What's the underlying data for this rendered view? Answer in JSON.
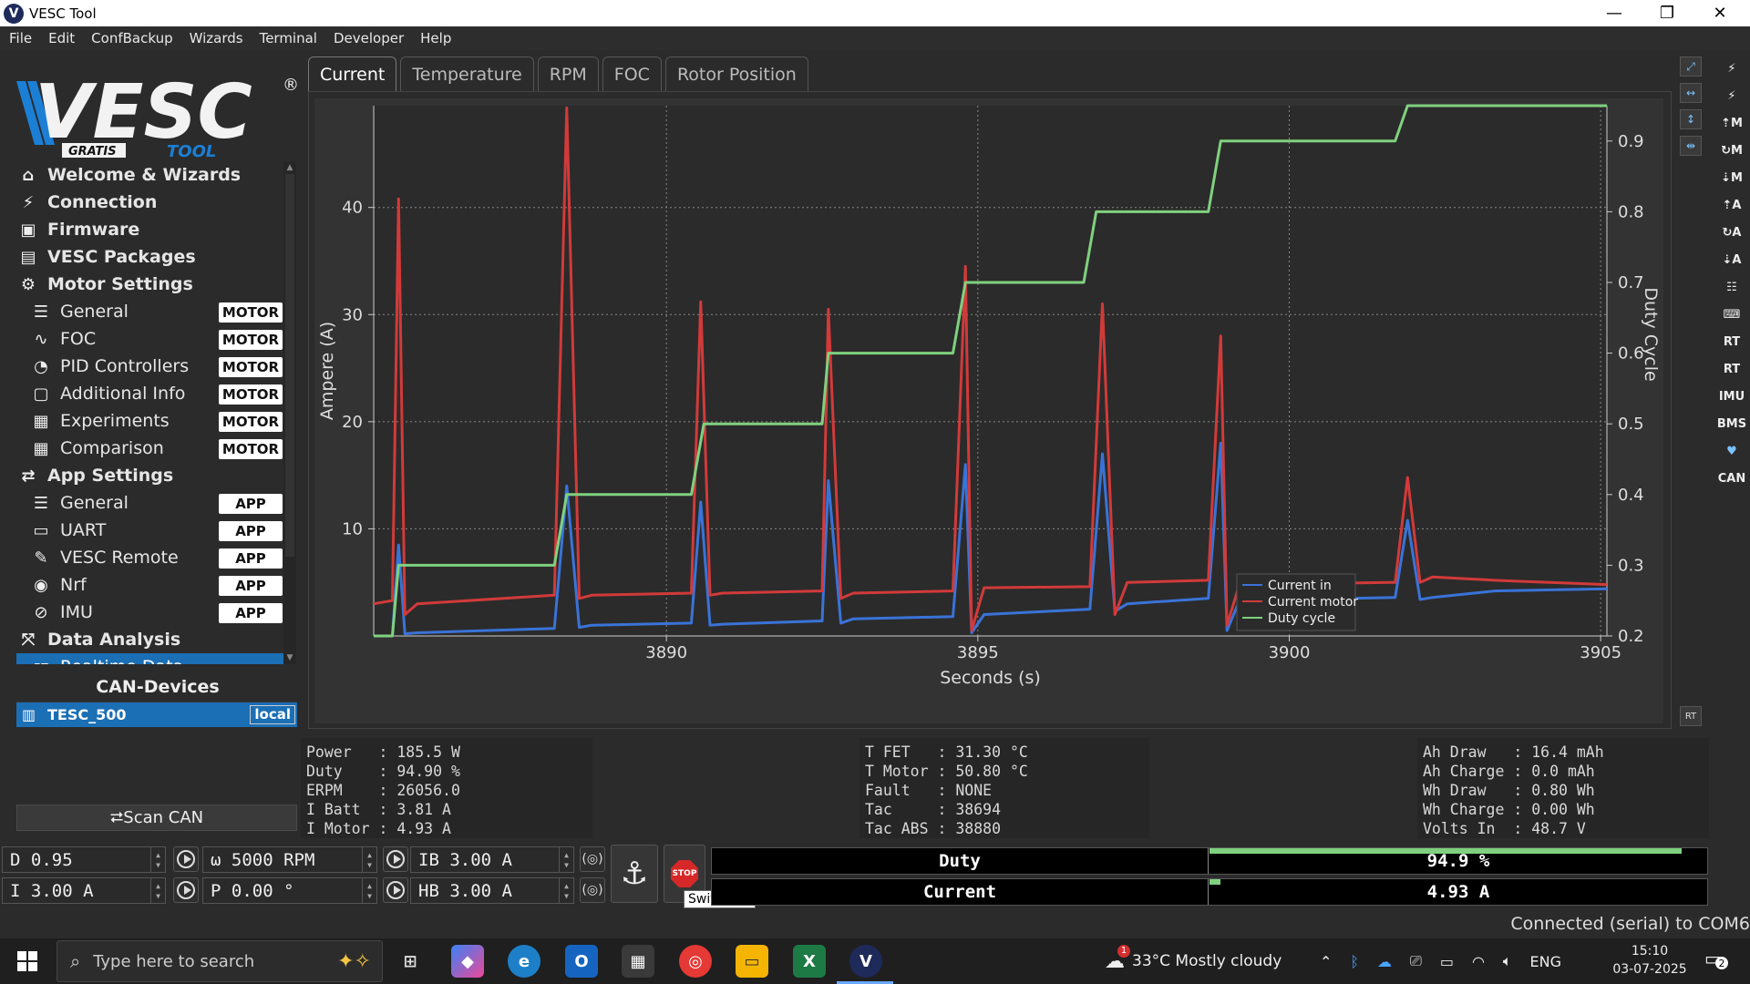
{
  "window": {
    "title": "VESC Tool",
    "minimize": "—",
    "maximize": "❐",
    "close": "✕",
    "logo": "V"
  },
  "menu": [
    "File",
    "Edit",
    "ConfBackup",
    "Wizards",
    "Terminal",
    "Developer",
    "Help"
  ],
  "logo": {
    "main": "VESC",
    "gratis": "GRATIS",
    "tool": "TOOL",
    "reg": "®"
  },
  "nav": [
    {
      "label": "Welcome & Wizards",
      "icon": "⌂",
      "level": "top"
    },
    {
      "label": "Connection",
      "icon": "⚡",
      "level": "top"
    },
    {
      "label": "Firmware",
      "icon": "▣",
      "level": "top"
    },
    {
      "label": "VESC Packages",
      "icon": "▤",
      "level": "top"
    },
    {
      "label": "Motor Settings",
      "icon": "⚙",
      "level": "top"
    },
    {
      "label": "General",
      "icon": "☰",
      "level": "sub",
      "tag": "MOTOR"
    },
    {
      "label": "FOC",
      "icon": "∿",
      "level": "sub",
      "tag": "MOTOR"
    },
    {
      "label": "PID Controllers",
      "icon": "◔",
      "level": "sub",
      "tag": "MOTOR"
    },
    {
      "label": "Additional Info",
      "icon": "▢",
      "level": "sub",
      "tag": "MOTOR"
    },
    {
      "label": "Experiments",
      "icon": "▦",
      "level": "sub",
      "tag": "MOTOR"
    },
    {
      "label": "Comparison",
      "icon": "▦",
      "level": "sub",
      "tag": "MOTOR"
    },
    {
      "label": "App Settings",
      "icon": "⇄",
      "level": "top"
    },
    {
      "label": "General",
      "icon": "☰",
      "level": "sub",
      "tag": "APP"
    },
    {
      "label": "UART",
      "icon": "▭",
      "level": "sub",
      "tag": "APP"
    },
    {
      "label": "VESC Remote",
      "icon": "✎",
      "level": "sub",
      "tag": "APP"
    },
    {
      "label": "Nrf",
      "icon": "◉",
      "level": "sub",
      "tag": "APP"
    },
    {
      "label": "IMU",
      "icon": "⊘",
      "level": "sub",
      "tag": "APP"
    },
    {
      "label": "Data Analysis",
      "icon": "⤧",
      "level": "top"
    },
    {
      "label": "Realtime Data",
      "icon": "RT",
      "level": "sub",
      "selected": true
    }
  ],
  "can": {
    "title": "CAN-Devices",
    "device": "TESC_500",
    "badge": "local",
    "scan_label": "⮂Scan CAN"
  },
  "tabs": [
    {
      "label": "Current",
      "active": true
    },
    {
      "label": "Temperature"
    },
    {
      "label": "RPM"
    },
    {
      "label": "FOC"
    },
    {
      "label": "Rotor Position"
    }
  ],
  "chart_data": {
    "type": "line",
    "xlabel": "Seconds (s)",
    "ylabel": "Ampere (A)",
    "y2label": "Duty Cycle",
    "xlim": [
      3885.3,
      3905.1
    ],
    "ylim": [
      0,
      49.5
    ],
    "y2lim": [
      0.2,
      0.95
    ],
    "xticks": [
      3890,
      3895,
      3900,
      3905
    ],
    "yticks": [
      10,
      20,
      30,
      40
    ],
    "y2ticks": [
      0.2,
      0.3,
      0.4,
      0.5,
      0.6,
      0.7,
      0.8,
      0.9
    ],
    "grid": true,
    "legend": "bottom-right",
    "series": [
      {
        "name": "Current in",
        "color": "#3a73d8",
        "axis": "left",
        "x": [
          3885.3,
          3885.6,
          3885.7,
          3885.8,
          3886.0,
          3888.2,
          3888.4,
          3888.6,
          3888.8,
          3890.4,
          3890.55,
          3890.7,
          3890.9,
          3892.5,
          3892.6,
          3892.8,
          3893.0,
          3894.6,
          3894.8,
          3894.9,
          3895.1,
          3896.8,
          3897.0,
          3897.2,
          3897.4,
          3898.7,
          3898.9,
          3899.0,
          3899.2,
          3901.7,
          3901.9,
          3902.1,
          3902.3,
          3903.3,
          3905.1
        ],
        "values": [
          0.0,
          0.0,
          8.5,
          0.2,
          0.3,
          0.7,
          14.0,
          0.8,
          1.0,
          1.2,
          12.5,
          1.0,
          1.1,
          1.4,
          14.5,
          1.2,
          1.6,
          1.8,
          16.0,
          0.3,
          2.0,
          2.5,
          17.0,
          2.3,
          3.0,
          3.5,
          18.0,
          0.5,
          3.3,
          3.6,
          10.8,
          3.4,
          3.6,
          4.2,
          4.4
        ]
      },
      {
        "name": "Current motor",
        "color": "#d23a3a",
        "axis": "left",
        "x": [
          3885.3,
          3885.6,
          3885.7,
          3885.8,
          3886.0,
          3888.2,
          3888.4,
          3888.6,
          3888.8,
          3890.4,
          3890.55,
          3890.7,
          3890.9,
          3892.5,
          3892.6,
          3892.8,
          3893.0,
          3894.6,
          3894.8,
          3894.9,
          3895.1,
          3896.8,
          3897.0,
          3897.2,
          3897.4,
          3898.7,
          3898.9,
          3899.0,
          3899.2,
          3901.7,
          3901.9,
          3902.1,
          3902.3,
          3903.3,
          3905.1
        ],
        "values": [
          3.0,
          3.3,
          40.8,
          2.0,
          3.0,
          3.8,
          49.3,
          3.5,
          3.8,
          4.0,
          31.2,
          3.8,
          4.0,
          4.2,
          30.5,
          3.5,
          4.0,
          4.2,
          34.5,
          0.5,
          4.5,
          4.6,
          31.0,
          2.0,
          5.0,
          5.2,
          28.0,
          1.0,
          4.8,
          5.0,
          14.8,
          5.0,
          5.5,
          5.2,
          4.8
        ]
      },
      {
        "name": "Duty cycle",
        "color": "#7fd17f",
        "axis": "right",
        "x": [
          3885.3,
          3885.6,
          3885.7,
          3888.2,
          3888.4,
          3890.4,
          3890.6,
          3892.5,
          3892.6,
          3894.6,
          3894.8,
          3896.7,
          3896.9,
          3898.7,
          3898.9,
          3901.7,
          3901.9,
          3905.1
        ],
        "values": [
          0.2,
          0.2,
          0.3,
          0.3,
          0.4,
          0.4,
          0.5,
          0.5,
          0.6,
          0.6,
          0.7,
          0.7,
          0.8,
          0.8,
          0.9,
          0.9,
          0.95,
          0.95
        ]
      }
    ]
  },
  "stats": {
    "col1": [
      "Power   : 185.5 W",
      "Duty    : 94.90 %",
      "ERPM    : 26056.0",
      "I Batt  : 3.81 A",
      "I Motor : 4.93 A"
    ],
    "col2": [
      "T FET   : 31.30 °C",
      "T Motor : 50.80 °C",
      "Fault   : NONE",
      "Tac     : 38694",
      "Tac ABS : 38880"
    ],
    "col3": [
      "Ah Draw   : 16.4 mAh",
      "Ah Charge : 0.0 mAh",
      "Wh Draw   : 0.80 Wh",
      "Wh Charge : 0.00 Wh",
      "Volts In  : 48.7 V"
    ]
  },
  "controls": {
    "duty": "D 0.95",
    "rpm": "ω 5000 RPM",
    "ib": "IB 3.00 A",
    "current": "I 3.00 A",
    "pos": "P 0.00 °",
    "hb": "HB 3.00 A",
    "stop_text": "STOP",
    "tooltip": "Switch off"
  },
  "bars": {
    "duty": {
      "label": "Duty",
      "value": "94.9 %",
      "fraction": 0.949
    },
    "current": {
      "label": "Current",
      "value": "4.93 A",
      "fraction": 0.012
    }
  },
  "status": "Connected (serial) to COM6",
  "taskbar": {
    "search_placeholder": "Type here to search",
    "weather": "33°C  Mostly cloudy",
    "weather_badge": "1",
    "lang": "ENG",
    "time": "15:10",
    "date": "03-07-2025",
    "notif": "2"
  }
}
